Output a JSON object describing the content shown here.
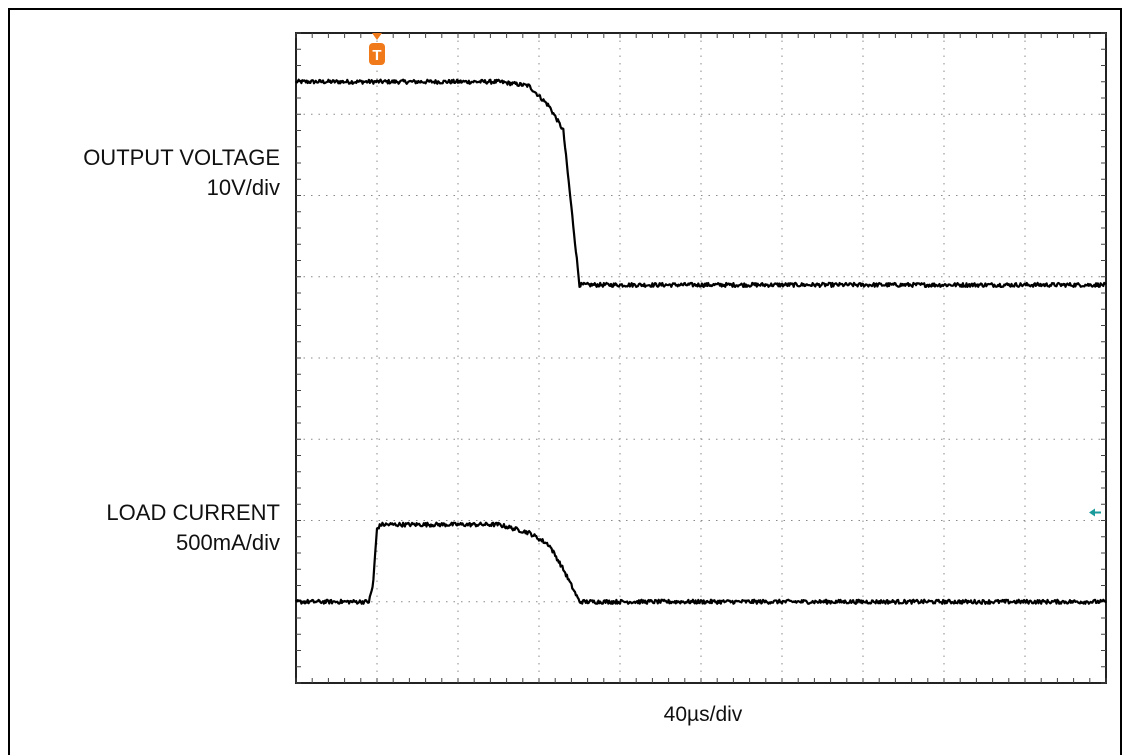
{
  "chart_data": {
    "type": "line",
    "title": "",
    "xlabel": "40µs/div",
    "ylabel": "",
    "grid": true,
    "x_divisions": 10,
    "y_divisions": 8,
    "x_range_us": [
      0,
      400
    ],
    "trigger_marker": "T",
    "trigger_x_us": 40,
    "ground_marker_color": "#1a9a9a",
    "colors": {
      "trace": "#000000",
      "trigger": "#f07a1a",
      "grid": "#8a8a8a",
      "ground_marker": "#1a9a9a"
    },
    "series": [
      {
        "name": "OUTPUT VOLTAGE",
        "scale": "10V/div",
        "x": [
          0,
          40,
          80,
          100,
          115,
          125,
          132,
          140,
          160,
          200,
          240,
          280,
          320,
          360,
          400
        ],
        "y": [
          7.4,
          7.4,
          7.4,
          7.4,
          7.35,
          7.1,
          6.8,
          4.9,
          4.9,
          4.9,
          4.9,
          4.9,
          4.9,
          4.9,
          4.9
        ]
      },
      {
        "name": "LOAD CURRENT",
        "scale": "500mA/div",
        "x": [
          0,
          36,
          38,
          40,
          42,
          80,
          100,
          115,
          125,
          132,
          140,
          160,
          200,
          240,
          280,
          320,
          360,
          400
        ],
        "y": [
          1.0,
          1.0,
          1.2,
          1.9,
          1.95,
          1.95,
          1.95,
          1.85,
          1.7,
          1.4,
          1.0,
          1.0,
          1.0,
          1.0,
          1.0,
          1.0,
          1.0,
          1.0
        ]
      }
    ],
    "legend": []
  }
}
